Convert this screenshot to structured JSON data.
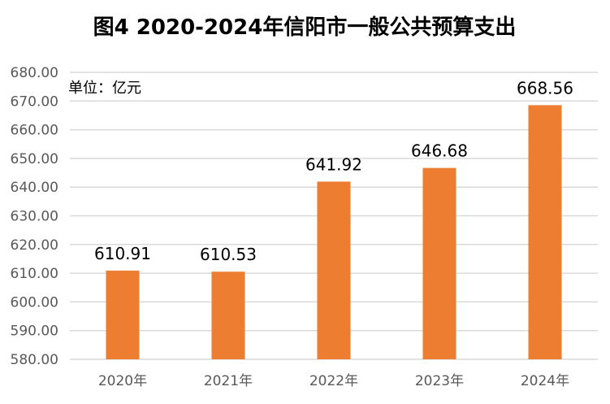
{
  "chart_data": {
    "type": "bar",
    "title": "图4  2020-2024年信阳市一般公共预算支出",
    "unit_label": "单位：亿元",
    "categories": [
      "2020年",
      "2021年",
      "2022年",
      "2023年",
      "2024年"
    ],
    "values": [
      610.91,
      610.53,
      641.92,
      646.68,
      668.56
    ],
    "data_labels": [
      "610.91",
      "610.53",
      "641.92",
      "646.68",
      "668.56"
    ],
    "ylim": [
      580,
      680
    ],
    "ytick_values": [
      580,
      590,
      600,
      610,
      620,
      630,
      640,
      650,
      660,
      670,
      680
    ],
    "ytick_labels": [
      "580.00",
      "590.00",
      "600.00",
      "610.00",
      "620.00",
      "630.00",
      "640.00",
      "650.00",
      "660.00",
      "670.00",
      "680.00"
    ],
    "xlabel": "",
    "ylabel": "",
    "grid": true,
    "legend": "none",
    "bar_color": "#ED7D31",
    "grid_color": "#D9D9D9"
  }
}
